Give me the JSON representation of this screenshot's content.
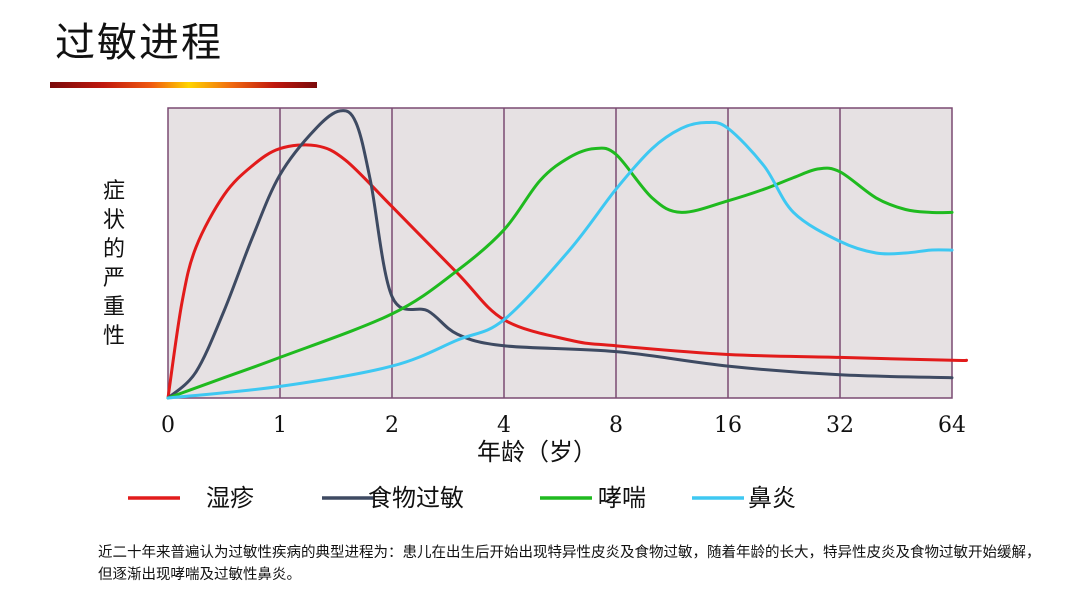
{
  "title": "过敏进程",
  "colors": {
    "plot_bg": "#e6e1e3",
    "grid": "#7a4a72",
    "eczema": "#e21b1b",
    "food_allergy": "#3e4a62",
    "asthma": "#1fba1f",
    "rhinitis": "#3ec8f2"
  },
  "chart_data": {
    "type": "line",
    "xlabel": "年龄（岁）",
    "ylabel": "症状的严重性",
    "x_scale": "log2",
    "x_ticks": [
      "0",
      "1",
      "2",
      "4",
      "8",
      "16",
      "32",
      "64"
    ],
    "ylim": [
      0,
      1
    ],
    "grid": true,
    "legend_position": "bottom",
    "series": [
      {
        "name": "湿疹",
        "x": [
          0,
          0.125,
          0.25,
          0.5,
          0.75,
          1,
          1.25,
          1.5,
          2,
          3,
          4,
          6,
          8,
          16,
          32,
          64,
          70
        ],
        "y": [
          0,
          0.33,
          0.52,
          0.7,
          0.8,
          0.86,
          0.87,
          0.82,
          0.66,
          0.43,
          0.27,
          0.2,
          0.18,
          0.15,
          0.14,
          0.13,
          0.13
        ]
      },
      {
        "name": "食物过敏",
        "x": [
          0,
          0.25,
          0.5,
          0.75,
          1,
          1.25,
          1.45,
          1.6,
          1.75,
          2,
          2.5,
          3,
          4,
          8,
          16,
          32,
          64
        ],
        "y": [
          0,
          0.09,
          0.3,
          0.55,
          0.77,
          0.93,
          0.99,
          0.95,
          0.75,
          0.35,
          0.3,
          0.22,
          0.18,
          0.16,
          0.11,
          0.08,
          0.07
        ]
      },
      {
        "name": "哮喘",
        "x": [
          0,
          0.5,
          1,
          2,
          3,
          4,
          5,
          6,
          7,
          8,
          10,
          12,
          16,
          20,
          24,
          28,
          32,
          40,
          48,
          56,
          64
        ],
        "y": [
          0,
          0.07,
          0.14,
          0.29,
          0.44,
          0.58,
          0.75,
          0.83,
          0.86,
          0.84,
          0.69,
          0.64,
          0.68,
          0.72,
          0.76,
          0.79,
          0.78,
          0.69,
          0.65,
          0.64,
          0.64
        ]
      },
      {
        "name": "鼻炎",
        "x": [
          0,
          1,
          2,
          3,
          4,
          6,
          8,
          10,
          12,
          14,
          16,
          20,
          24,
          32,
          40,
          48,
          56,
          64
        ],
        "y": [
          0,
          0.04,
          0.11,
          0.2,
          0.27,
          0.51,
          0.72,
          0.86,
          0.93,
          0.95,
          0.93,
          0.8,
          0.64,
          0.54,
          0.5,
          0.5,
          0.51,
          0.51
        ]
      }
    ]
  },
  "footnote": "近二十年来普遍认为过敏性疾病的典型进程为：患儿在出生后开始出现特异性皮炎及食物过敏，随着年龄的长大，特异性皮炎及食物过敏开始缓解，但逐渐出现哮喘及过敏性鼻炎。"
}
